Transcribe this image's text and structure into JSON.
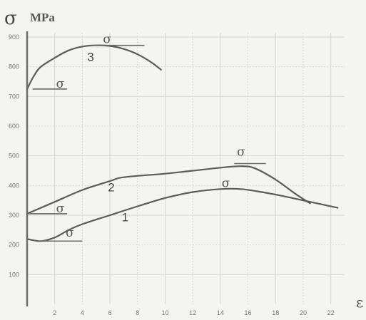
{
  "chart_data": {
    "type": "line",
    "ylabel_symbol": "σ",
    "ylabel_unit": "MPa",
    "xlabel": "ε",
    "xlim": [
      0,
      23
    ],
    "ylim": [
      0,
      900
    ],
    "x_ticks": [
      2,
      4,
      6,
      8,
      10,
      12,
      14,
      16,
      18,
      20,
      22
    ],
    "y_ticks": [
      100,
      200,
      300,
      400,
      500,
      600,
      700,
      800,
      900
    ],
    "grid": true,
    "series": [
      {
        "name": "1",
        "x": [
          0,
          1,
          2,
          3,
          4,
          6,
          8,
          10,
          12,
          14,
          15.5,
          17,
          18.5,
          20,
          21,
          22.5
        ],
        "y": [
          220,
          213,
          225,
          250,
          270,
          300,
          330,
          358,
          378,
          388,
          388,
          378,
          365,
          350,
          340,
          325
        ]
      },
      {
        "name": "2",
        "x": [
          0,
          2,
          4,
          6,
          7,
          10,
          12,
          14,
          15.5,
          16.5,
          18,
          19.5,
          20.5
        ],
        "y": [
          305,
          345,
          385,
          415,
          428,
          440,
          450,
          460,
          465,
          458,
          420,
          370,
          340
        ]
      },
      {
        "name": "3",
        "x": [
          0,
          0.5,
          1,
          2,
          3,
          4,
          5,
          6,
          7,
          8,
          9,
          9.7
        ],
        "y": [
          725,
          770,
          800,
          830,
          855,
          868,
          872,
          870,
          860,
          842,
          815,
          790
        ]
      }
    ],
    "annotations": [
      {
        "text": "σ",
        "x": 5.8,
        "y": 880
      },
      {
        "text": "σ",
        "x": 2.4,
        "y": 730
      },
      {
        "text": "σ",
        "x": 15.5,
        "y": 500
      },
      {
        "text": "σ",
        "x": 14.4,
        "y": 395
      },
      {
        "text": "σ",
        "x": 2.4,
        "y": 310
      },
      {
        "text": "σ",
        "x": 3.1,
        "y": 228
      }
    ],
    "curve_labels": [
      {
        "text": "1",
        "x": 7.1,
        "y": 280
      },
      {
        "text": "2",
        "x": 6.1,
        "y": 380
      },
      {
        "text": "3",
        "x": 4.6,
        "y": 820
      }
    ]
  }
}
